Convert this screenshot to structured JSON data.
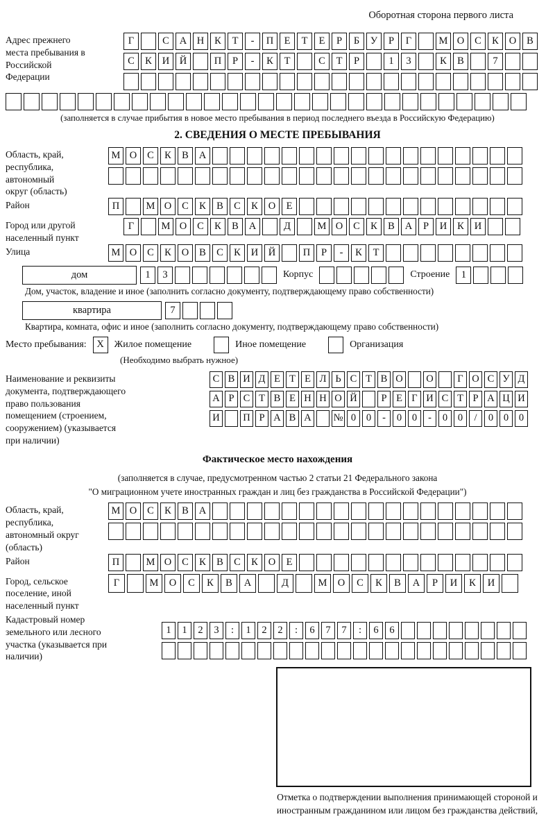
{
  "colors": {
    "ink": "#111111",
    "background": "#ffffff"
  },
  "page": {
    "header_note": "Оборотная сторона первого листа"
  },
  "prev_address": {
    "label": "Адрес прежнего места пребывания в Российской Федерации",
    "rows": [
      "Г САНКТ-ПЕТЕРБУРГ МОСКОВ",
      "СКИЙ ПР-КТ СТР 13 КВ 7  ",
      "                        "
    ],
    "full_row": "                             ",
    "note": "(заполняется в случае прибытия в новое место пребывания в период последнего въезда в Российскую Федерацию)"
  },
  "section2": {
    "title": "2. СВЕДЕНИЯ О МЕСТЕ ПРЕБЫВАНИЯ",
    "region": {
      "label": "Область, край, республика, автономный округ (область)",
      "rows": [
        "МОСКВА                  ",
        "                        "
      ]
    },
    "district": {
      "label": "Район",
      "row": "П МОСКВСКОЕ             "
    },
    "city": {
      "label": "Город или другой населенный пункт",
      "row": "Г МОСКВА Д МОСКВАРИКИ  "
    },
    "street": {
      "label": "Улица",
      "row": "МОСКОВСКИЙ ПР-КТ        "
    },
    "house": {
      "type_label": "дом",
      "cells": "13      ",
      "korpus_label": "Корпус",
      "korpus_cells": "     ",
      "stroenie_label": "Строение",
      "stroenie_cells": "1   "
    },
    "house_note": "Дом, участок, владение и иное (заполнить согласно документу, подтверждающему право собственности)",
    "apartment": {
      "type_label": "квартира",
      "cells": "7   "
    },
    "apartment_note": "Квартира, комната, офис и иное (заполнить согласно документу, подтверждающему право собственности)",
    "stay": {
      "label": "Место пребывания:",
      "options": [
        {
          "label": "Жилое помещение",
          "mark": "X"
        },
        {
          "label": "Иное помещение",
          "mark": ""
        },
        {
          "label": "Организация",
          "mark": ""
        }
      ],
      "note": "(Необходимо выбрать нужное)"
    },
    "document": {
      "label": "Наименование и реквизиты документа, подтверждающего право пользования помещением (строением, сооружением) (указывается при наличии)",
      "rows": [
        "СВИДЕТЕЛЬСТВО О ГОСУД",
        "АРСТВЕННОЙ РЕГИСТРАЦИ",
        "И ПРАВА №00-00-00/000"
      ]
    }
  },
  "actual_location": {
    "title": "Фактическое место нахождения",
    "note1": "(заполняется в случае, предусмотренном частью 2 статьи 21 Федерального закона",
    "note2": "\"О миграционном учете иностранных граждан и лиц без гражданства в Российской Федерации\")",
    "region": {
      "label": "Область, край, республика, автономный округ (область)",
      "rows": [
        "МОСКВА                  ",
        "                        "
      ]
    },
    "district": {
      "label": "Район",
      "row": "П МОСКВСКОЕ             "
    },
    "city": {
      "label": "Город, сельское поселение, иной населенный пункт",
      "row": "Г МОСКВА Д МОСКВАРИКИ "
    },
    "cadastral": {
      "label": "Кадастровый номер земельного или лесного участка (указывается при наличии)",
      "rows": [
        "1123:122:677:66        ",
        "                       "
      ]
    }
  },
  "confirmation": {
    "caption": "Отметка о подтверждении выполнения принимающей стороной и иностранным гражданином или лицом без гражданства действий, необходимых для его постановки на учет по месту пребывания"
  }
}
